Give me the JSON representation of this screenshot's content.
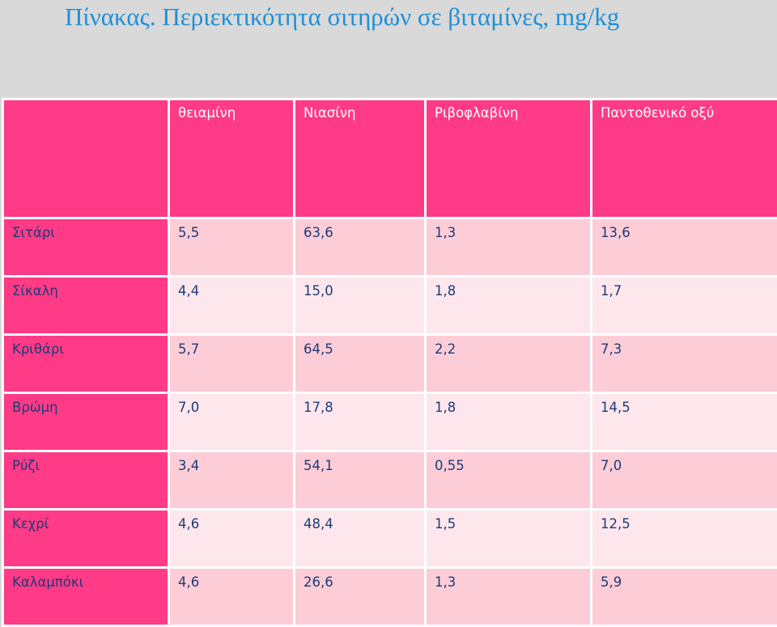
{
  "title": "Πίνακας. Περιεκτικότητα σιτηρών σε βιταμίνες, mg/kg",
  "colors": {
    "header": "#ff3a87",
    "row_odd": "#fccdd7",
    "row_even": "#fde7ec",
    "title": "#1f8fd8",
    "text": "#1e3a78",
    "background": "#d9d9d9"
  },
  "table": {
    "headers": [
      "",
      "θειαμίνη",
      "Νιασίνη",
      "Ριβοφλαβίνη",
      "Παντοθενικό οξύ"
    ],
    "rows": [
      {
        "name": "Σιτάρι",
        "values": [
          "5,5",
          "63,6",
          "1,3",
          "13,6"
        ]
      },
      {
        "name": "Σίκαλη",
        "values": [
          "4,4",
          "15,0",
          "1,8",
          "1,7"
        ]
      },
      {
        "name": "Κριθάρι",
        "values": [
          "5,7",
          "64,5",
          "2,2",
          "7,3"
        ]
      },
      {
        "name": "Βρώμη",
        "values": [
          "7,0",
          "17,8",
          "1,8",
          "14,5"
        ]
      },
      {
        "name": "Ρύζι",
        "values": [
          "3,4",
          "54,1",
          "0,55",
          "7,0"
        ]
      },
      {
        "name": "Κεχρί",
        "values": [
          "4,6",
          "48,4",
          "1,5",
          "12,5"
        ]
      },
      {
        "name": "Καλαμπόκι",
        "values": [
          "4,6",
          "26,6",
          "1,3",
          "5,9"
        ]
      }
    ]
  }
}
